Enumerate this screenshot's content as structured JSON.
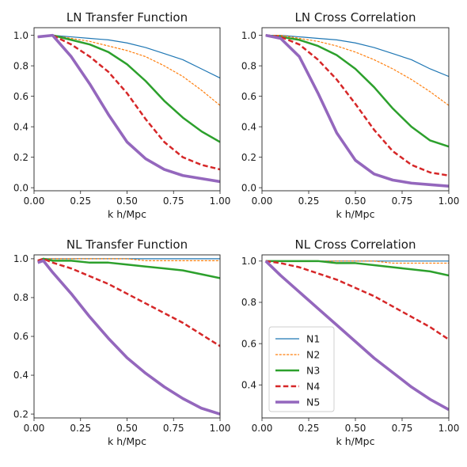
{
  "series_styles": [
    {
      "name": "N1",
      "color": "#1f77b4",
      "dash": "solid",
      "width": "thin"
    },
    {
      "name": "N2",
      "color": "#ff7f0e",
      "dash": "dashed",
      "width": "thin"
    },
    {
      "name": "N3",
      "color": "#2ca02c",
      "dash": "solid",
      "width": "medium"
    },
    {
      "name": "N4",
      "color": "#d62728",
      "dash": "dashed",
      "width": "medium"
    },
    {
      "name": "N5",
      "color": "#9467bd",
      "dash": "solid",
      "width": "thick"
    }
  ],
  "chart_data": [
    {
      "type": "line",
      "title": "LN Transfer Function",
      "xlabel": "k h/Mpc",
      "xlim": [
        0,
        1
      ],
      "ylim": [
        -0.02,
        1.05
      ],
      "xticks": [
        "0.00",
        "0.25",
        "0.50",
        "0.75",
        "1.00"
      ],
      "yticks": [
        "0.0",
        "0.2",
        "0.4",
        "0.6",
        "0.8",
        "1.0"
      ],
      "legend": false,
      "x": [
        0.02,
        0.1,
        0.2,
        0.3,
        0.4,
        0.5,
        0.6,
        0.7,
        0.8,
        0.9,
        1.0
      ],
      "series": [
        {
          "name": "N1",
          "values": [
            0.99,
            1.0,
            0.99,
            0.98,
            0.97,
            0.95,
            0.92,
            0.88,
            0.84,
            0.78,
            0.72
          ]
        },
        {
          "name": "N2",
          "values": [
            0.99,
            1.0,
            0.98,
            0.96,
            0.93,
            0.9,
            0.86,
            0.8,
            0.73,
            0.64,
            0.54
          ]
        },
        {
          "name": "N3",
          "values": [
            0.99,
            1.0,
            0.97,
            0.94,
            0.89,
            0.81,
            0.7,
            0.57,
            0.46,
            0.37,
            0.3
          ]
        },
        {
          "name": "N4",
          "values": [
            0.99,
            1.0,
            0.94,
            0.86,
            0.76,
            0.62,
            0.45,
            0.3,
            0.2,
            0.15,
            0.12
          ]
        },
        {
          "name": "N5",
          "values": [
            0.99,
            1.0,
            0.86,
            0.68,
            0.48,
            0.3,
            0.19,
            0.12,
            0.08,
            0.06,
            0.04
          ]
        }
      ]
    },
    {
      "type": "line",
      "title": "LN Cross Correlation",
      "xlabel": "k h/Mpc",
      "xlim": [
        0,
        1
      ],
      "ylim": [
        -0.02,
        1.05
      ],
      "xticks": [
        "0.00",
        "0.25",
        "0.50",
        "0.75",
        "1.00"
      ],
      "yticks": [
        "0.0",
        "0.2",
        "0.4",
        "0.6",
        "0.8",
        "1.0"
      ],
      "legend": false,
      "x": [
        0.02,
        0.1,
        0.2,
        0.3,
        0.4,
        0.5,
        0.6,
        0.7,
        0.8,
        0.9,
        1.0
      ],
      "series": [
        {
          "name": "N1",
          "values": [
            1.0,
            1.0,
            0.99,
            0.98,
            0.97,
            0.95,
            0.92,
            0.88,
            0.84,
            0.78,
            0.73
          ]
        },
        {
          "name": "N2",
          "values": [
            1.0,
            1.0,
            0.98,
            0.96,
            0.93,
            0.89,
            0.84,
            0.78,
            0.71,
            0.63,
            0.54
          ]
        },
        {
          "name": "N3",
          "values": [
            1.0,
            0.99,
            0.97,
            0.93,
            0.87,
            0.78,
            0.66,
            0.52,
            0.4,
            0.31,
            0.27
          ]
        },
        {
          "name": "N4",
          "values": [
            1.0,
            0.99,
            0.94,
            0.84,
            0.71,
            0.55,
            0.38,
            0.24,
            0.15,
            0.1,
            0.08
          ]
        },
        {
          "name": "N5",
          "values": [
            1.0,
            0.98,
            0.86,
            0.62,
            0.36,
            0.18,
            0.09,
            0.05,
            0.03,
            0.02,
            0.01
          ]
        }
      ]
    },
    {
      "type": "line",
      "title": "NL Transfer Function",
      "xlabel": "k h/Mpc",
      "xlim": [
        0,
        1
      ],
      "ylim": [
        0.18,
        1.02
      ],
      "xticks": [
        "0.00",
        "0.25",
        "0.50",
        "0.75",
        "1.00"
      ],
      "yticks": [
        "0.2",
        "0.4",
        "0.6",
        "0.8",
        "1.0"
      ],
      "legend": false,
      "x": [
        0.02,
        0.05,
        0.1,
        0.2,
        0.3,
        0.4,
        0.5,
        0.6,
        0.7,
        0.8,
        0.9,
        1.0
      ],
      "series": [
        {
          "name": "N1",
          "values": [
            0.99,
            1.0,
            1.0,
            1.0,
            1.0,
            1.0,
            1.0,
            1.0,
            1.0,
            1.0,
            1.0,
            1.0
          ]
        },
        {
          "name": "N2",
          "values": [
            0.99,
            1.0,
            1.0,
            1.0,
            1.0,
            1.0,
            1.0,
            0.99,
            0.99,
            0.99,
            0.99,
            0.99
          ]
        },
        {
          "name": "N3",
          "values": [
            0.99,
            1.0,
            0.99,
            0.99,
            0.98,
            0.98,
            0.97,
            0.96,
            0.95,
            0.94,
            0.92,
            0.9
          ]
        },
        {
          "name": "N4",
          "values": [
            0.99,
            1.0,
            0.98,
            0.95,
            0.91,
            0.87,
            0.82,
            0.77,
            0.72,
            0.67,
            0.61,
            0.55
          ]
        },
        {
          "name": "N5",
          "values": [
            0.98,
            0.99,
            0.93,
            0.82,
            0.7,
            0.59,
            0.49,
            0.41,
            0.34,
            0.28,
            0.23,
            0.2
          ]
        }
      ]
    },
    {
      "type": "line",
      "title": "NL Cross Correlation",
      "xlabel": "k h/Mpc",
      "xlim": [
        0,
        1
      ],
      "ylim": [
        0.24,
        1.03
      ],
      "xticks": [
        "0.00",
        "0.25",
        "0.50",
        "0.75",
        "1.00"
      ],
      "yticks": [
        "0.4",
        "0.6",
        "0.8",
        "1.0"
      ],
      "legend": true,
      "legend_position": "lower-left",
      "x": [
        0.02,
        0.1,
        0.2,
        0.3,
        0.4,
        0.5,
        0.6,
        0.7,
        0.8,
        0.9,
        1.0
      ],
      "series": [
        {
          "name": "N1",
          "values": [
            1.0,
            1.0,
            1.0,
            1.0,
            1.0,
            1.0,
            1.0,
            1.0,
            1.0,
            1.0,
            1.0
          ]
        },
        {
          "name": "N2",
          "values": [
            1.0,
            1.0,
            1.0,
            1.0,
            1.0,
            1.0,
            1.0,
            0.99,
            0.99,
            0.99,
            0.99
          ]
        },
        {
          "name": "N3",
          "values": [
            1.0,
            1.0,
            1.0,
            1.0,
            0.99,
            0.99,
            0.98,
            0.97,
            0.96,
            0.95,
            0.93
          ]
        },
        {
          "name": "N4",
          "values": [
            1.0,
            0.99,
            0.97,
            0.94,
            0.91,
            0.87,
            0.83,
            0.78,
            0.73,
            0.68,
            0.62
          ]
        },
        {
          "name": "N5",
          "values": [
            1.0,
            0.93,
            0.85,
            0.77,
            0.69,
            0.61,
            0.53,
            0.46,
            0.39,
            0.33,
            0.28
          ]
        }
      ]
    }
  ]
}
